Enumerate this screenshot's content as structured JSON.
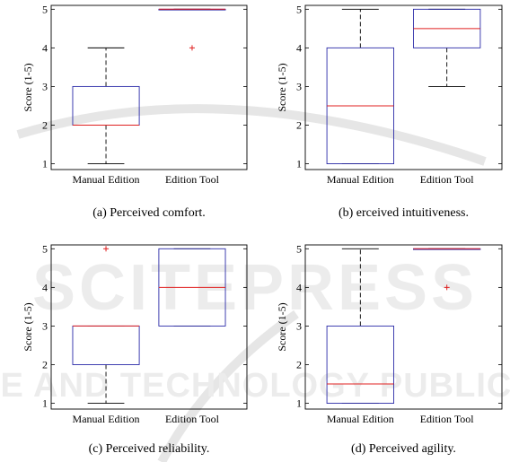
{
  "watermark": {
    "line1": "SCITEPRESS",
    "line2": "SCIENCE AND TECHNOLOGY PUBLICATIONS"
  },
  "chart_data": [
    {
      "type": "boxplot",
      "title": "",
      "caption": "(a)  Perceived comfort.",
      "ylabel": "Score (1-5)",
      "xlabel": "",
      "ylim": [
        0.85,
        5.1
      ],
      "yticks": [
        1,
        2,
        3,
        4,
        5
      ],
      "categories": [
        "Manual Edition",
        "Edition Tool"
      ],
      "boxes": [
        {
          "name": "Manual Edition",
          "whisker_low": 1,
          "q1": 2,
          "median": 2,
          "q3": 3,
          "whisker_high": 4,
          "outliers": []
        },
        {
          "name": "Edition Tool",
          "whisker_low": 5,
          "q1": 5,
          "median": 5,
          "q3": 5,
          "whisker_high": 5,
          "outliers": [
            4
          ]
        }
      ]
    },
    {
      "type": "boxplot",
      "title": "",
      "caption": "(b)  erceived intuitiveness.",
      "ylabel": "Score (1-5)",
      "xlabel": "",
      "ylim": [
        0.85,
        5.1
      ],
      "yticks": [
        1,
        2,
        3,
        4,
        5
      ],
      "categories": [
        "Manual Edition",
        "Edition Tool"
      ],
      "boxes": [
        {
          "name": "Manual Edition",
          "whisker_low": 1,
          "q1": 1,
          "median": 2.5,
          "q3": 4,
          "whisker_high": 5,
          "outliers": []
        },
        {
          "name": "Edition Tool",
          "whisker_low": 3,
          "q1": 4,
          "median": 4.5,
          "q3": 5,
          "whisker_high": 5,
          "outliers": []
        }
      ]
    },
    {
      "type": "boxplot",
      "title": "",
      "caption": "(c)  Perceived reliability.",
      "ylabel": "Score (1-5)",
      "xlabel": "",
      "ylim": [
        0.85,
        5.1
      ],
      "yticks": [
        1,
        2,
        3,
        4,
        5
      ],
      "categories": [
        "Manual Edition",
        "Edition Tool"
      ],
      "boxes": [
        {
          "name": "Manual Edition",
          "whisker_low": 1,
          "q1": 2,
          "median": 3,
          "q3": 3,
          "whisker_high": 3,
          "outliers": [
            5
          ]
        },
        {
          "name": "Edition Tool",
          "whisker_low": 3,
          "q1": 3,
          "median": 4,
          "q3": 5,
          "whisker_high": 5,
          "outliers": []
        }
      ]
    },
    {
      "type": "boxplot",
      "title": "",
      "caption": "(d)  Perceived agility.",
      "ylabel": "Score (1-5)",
      "xlabel": "",
      "ylim": [
        0.85,
        5.1
      ],
      "yticks": [
        1,
        2,
        3,
        4,
        5
      ],
      "categories": [
        "Manual Edition",
        "Edition Tool"
      ],
      "boxes": [
        {
          "name": "Manual Edition",
          "whisker_low": 1,
          "q1": 1,
          "median": 1.5,
          "q3": 3,
          "whisker_high": 5,
          "outliers": []
        },
        {
          "name": "Edition Tool",
          "whisker_low": 5,
          "q1": 5,
          "median": 5,
          "q3": 5,
          "whisker_high": 5,
          "outliers": [
            4
          ]
        }
      ]
    }
  ],
  "colors": {
    "box": "#2b2ba8",
    "median": "#e02020",
    "outlier": "#e02020",
    "whisker": "#000000",
    "axis": "#000000"
  }
}
